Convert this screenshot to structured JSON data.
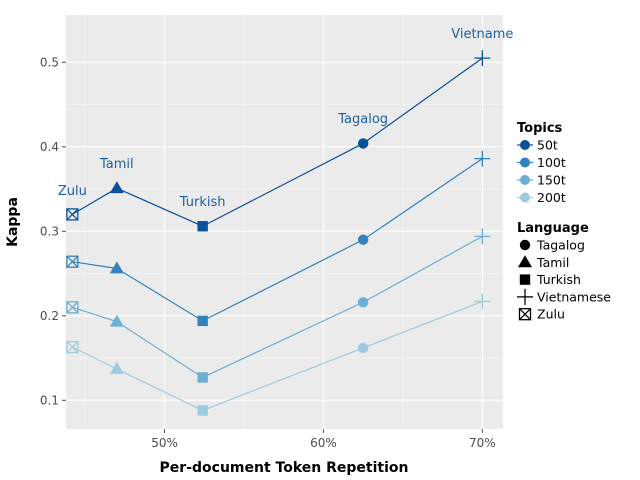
{
  "chart_data": {
    "type": "line",
    "xlabel": "Per-document Token Repetition",
    "ylabel": "Kappa",
    "x_ticks": [
      50,
      60,
      70
    ],
    "x_tick_labels": [
      "50%",
      "60%",
      "70%"
    ],
    "y_ticks": [
      0.1,
      0.2,
      0.3,
      0.4,
      0.5
    ],
    "y_tick_labels": [
      "0.1",
      "0.2",
      "0.3",
      "0.4",
      "0.5"
    ],
    "xlim": [
      43.8,
      71.3
    ],
    "ylim": [
      0.066,
      0.556
    ],
    "grid": true,
    "languages": [
      {
        "name": "Zulu",
        "x": 44.2,
        "shape": "boxed-x"
      },
      {
        "name": "Tamil",
        "x": 47.0,
        "shape": "triangle"
      },
      {
        "name": "Turkish",
        "x": 52.4,
        "shape": "square"
      },
      {
        "name": "Tagalog",
        "x": 62.5,
        "shape": "circle"
      },
      {
        "name": "Vietnamese",
        "x": 70.0,
        "shape": "plus"
      }
    ],
    "series": [
      {
        "name": "50t",
        "color": "#08519c",
        "values": [
          0.32,
          0.351,
          0.306,
          0.404,
          0.505
        ]
      },
      {
        "name": "100t",
        "color": "#3182bd",
        "values": [
          0.264,
          0.256,
          0.194,
          0.29,
          0.386
        ]
      },
      {
        "name": "150t",
        "color": "#6baed6",
        "values": [
          0.21,
          0.193,
          0.127,
          0.216,
          0.294
        ]
      },
      {
        "name": "200t",
        "color": "#9ecae1",
        "values": [
          0.163,
          0.137,
          0.088,
          0.162,
          0.217
        ]
      }
    ],
    "annotations": [
      {
        "text": "Zulu",
        "x": 44.2,
        "y": 0.343
      },
      {
        "text": "Tamil",
        "x": 47.0,
        "y": 0.375
      },
      {
        "text": "Turkish",
        "x": 52.4,
        "y": 0.33
      },
      {
        "text": "Tagalog",
        "x": 62.5,
        "y": 0.428
      },
      {
        "text": "Vietname",
        "x": 70.0,
        "y": 0.529
      }
    ],
    "legend": {
      "placement": "right",
      "topics_title": "Topics",
      "language_title": "Language"
    }
  }
}
